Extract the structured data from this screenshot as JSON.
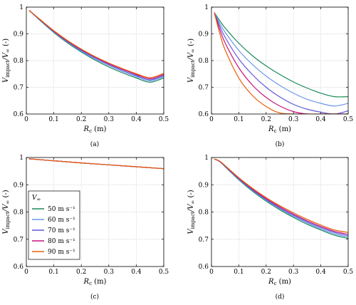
{
  "figure": {
    "colors": {
      "50": "#1a8a5a",
      "60": "#6a98e8",
      "70": "#6058d8",
      "80": "#c8127a",
      "90": "#e8600a",
      "grid": "#cfcfcf",
      "frame": "#000000"
    }
  },
  "legend": {
    "title": "V∞",
    "entries": [
      "50 m s⁻¹",
      "60 m s⁻¹",
      "70 m s⁻¹",
      "80 m s⁻¹",
      "90 m s⁻¹"
    ]
  },
  "chart_data": [
    {
      "type": "line",
      "caption": "(a)",
      "xlabel": "Rc (m)",
      "ylabel": "Vimpact/V∞ (-)",
      "xlim": [
        0,
        0.5
      ],
      "ylim": [
        0.6,
        1.0
      ],
      "xticks": [
        "0",
        "0.1",
        "0.2",
        "0.3",
        "0.4",
        "0.5"
      ],
      "yticks": [
        "0.6",
        "0.7",
        "0.8",
        "0.9",
        "1"
      ],
      "grid": true,
      "x": [
        0.01,
        0.05,
        0.1,
        0.15,
        0.2,
        0.25,
        0.3,
        0.35,
        0.4,
        0.45,
        0.5
      ],
      "series": [
        {
          "name": "50 m s⁻¹",
          "color": "50",
          "values": [
            0.988,
            0.95,
            0.905,
            0.866,
            0.832,
            0.802,
            0.776,
            0.754,
            0.735,
            0.719,
            0.735
          ]
        },
        {
          "name": "60 m s⁻¹",
          "color": "60",
          "values": [
            0.988,
            0.951,
            0.907,
            0.869,
            0.835,
            0.806,
            0.781,
            0.759,
            0.74,
            0.724,
            0.74
          ]
        },
        {
          "name": "70 m s⁻¹",
          "color": "70",
          "values": [
            0.988,
            0.952,
            0.909,
            0.871,
            0.838,
            0.81,
            0.785,
            0.763,
            0.744,
            0.728,
            0.744
          ]
        },
        {
          "name": "80 m s⁻¹",
          "color": "80",
          "values": [
            0.988,
            0.953,
            0.91,
            0.873,
            0.841,
            0.813,
            0.788,
            0.767,
            0.748,
            0.732,
            0.748
          ]
        },
        {
          "name": "90 m s⁻¹",
          "color": "90",
          "values": [
            0.988,
            0.954,
            0.912,
            0.875,
            0.843,
            0.815,
            0.791,
            0.77,
            0.751,
            0.736,
            0.752
          ]
        }
      ]
    },
    {
      "type": "line",
      "caption": "(b)",
      "xlabel": "Rc (m)",
      "ylabel": "Vimpact/V∞ (-)",
      "xlim": [
        0,
        0.5
      ],
      "ylim": [
        0.6,
        1.0
      ],
      "xticks": [
        "0",
        "0.1",
        "0.2",
        "0.3",
        "0.4",
        "0.5"
      ],
      "yticks": [
        "0.6",
        "0.7",
        "0.8",
        "0.9",
        "1"
      ],
      "grid": true,
      "x": [
        0.01,
        0.03,
        0.05,
        0.1,
        0.15,
        0.2,
        0.25,
        0.3,
        0.35,
        0.4,
        0.45,
        0.5
      ],
      "series": [
        {
          "name": "50 m s⁻¹",
          "color": "50",
          "values": [
            0.98,
            0.95,
            0.922,
            0.865,
            0.818,
            0.78,
            0.748,
            0.72,
            0.697,
            0.678,
            0.665,
            0.665
          ]
        },
        {
          "name": "60 m s⁻¹",
          "color": "60",
          "values": [
            0.98,
            0.94,
            0.906,
            0.838,
            0.785,
            0.742,
            0.707,
            0.678,
            0.655,
            0.64,
            0.63,
            0.64
          ]
        },
        {
          "name": "70 m s⁻¹",
          "color": "70",
          "values": [
            0.98,
            0.93,
            0.887,
            0.806,
            0.747,
            0.7,
            0.664,
            0.636,
            0.618,
            0.607,
            0.6,
            0.612
          ]
        },
        {
          "name": "80 m s⁻¹",
          "color": "80",
          "values": [
            0.98,
            0.918,
            0.866,
            0.773,
            0.708,
            0.662,
            0.63,
            0.609,
            0.6,
            0.6,
            0.6,
            0.6
          ]
        },
        {
          "name": "90 m s⁻¹",
          "color": "90",
          "values": [
            0.98,
            0.903,
            0.84,
            0.735,
            0.669,
            0.628,
            0.604,
            0.6,
            0.6,
            0.6,
            0.6,
            0.6
          ]
        }
      ]
    },
    {
      "type": "line",
      "caption": "(c)",
      "xlabel": "Rc (m)",
      "ylabel": "Vimpact/V∞ (-)",
      "xlim": [
        0,
        0.5
      ],
      "ylim": [
        0.6,
        1.0
      ],
      "xticks": [
        "0",
        "0.1",
        "0.2",
        "0.3",
        "0.4",
        "0.5"
      ],
      "yticks": [
        "0.6",
        "0.7",
        "0.8",
        "0.9",
        "1"
      ],
      "grid": true,
      "x": [
        0.01,
        0.1,
        0.2,
        0.3,
        0.4,
        0.5
      ],
      "series": [
        {
          "name": "50 m s⁻¹",
          "color": "50",
          "values": [
            0.995,
            0.988,
            0.98,
            0.973,
            0.966,
            0.959
          ]
        },
        {
          "name": "60 m s⁻¹",
          "color": "60",
          "values": [
            0.995,
            0.988,
            0.98,
            0.973,
            0.966,
            0.959
          ]
        },
        {
          "name": "70 m s⁻¹",
          "color": "70",
          "values": [
            0.995,
            0.988,
            0.98,
            0.973,
            0.966,
            0.959
          ]
        },
        {
          "name": "80 m s⁻¹",
          "color": "80",
          "values": [
            0.995,
            0.988,
            0.98,
            0.973,
            0.966,
            0.959
          ]
        },
        {
          "name": "90 m s⁻¹",
          "color": "90",
          "values": [
            0.995,
            0.988,
            0.98,
            0.973,
            0.966,
            0.959
          ]
        }
      ]
    },
    {
      "type": "line",
      "caption": "(d)",
      "xlabel": "Rc (m)",
      "ylabel": "Vimpact/V∞ (-)",
      "xlim": [
        0,
        0.5
      ],
      "ylim": [
        0.6,
        1.0
      ],
      "xticks": [
        "0",
        "0.1",
        "0.2",
        "0.3",
        "0.4",
        "0.5"
      ],
      "yticks": [
        "0.6",
        "0.7",
        "0.8",
        "0.9",
        "1"
      ],
      "grid": true,
      "x": [
        0.01,
        0.03,
        0.05,
        0.1,
        0.15,
        0.2,
        0.25,
        0.3,
        0.35,
        0.4,
        0.45,
        0.5
      ],
      "series": [
        {
          "name": "50 m s⁻¹",
          "color": "50",
          "values": [
            0.995,
            0.985,
            0.966,
            0.918,
            0.876,
            0.84,
            0.808,
            0.78,
            0.755,
            0.734,
            0.715,
            0.703
          ]
        },
        {
          "name": "60 m s⁻¹",
          "color": "60",
          "values": [
            0.995,
            0.985,
            0.967,
            0.92,
            0.879,
            0.843,
            0.812,
            0.784,
            0.76,
            0.738,
            0.72,
            0.708
          ]
        },
        {
          "name": "70 m s⁻¹",
          "color": "70",
          "values": [
            0.995,
            0.986,
            0.968,
            0.922,
            0.881,
            0.846,
            0.815,
            0.788,
            0.764,
            0.743,
            0.725,
            0.713
          ]
        },
        {
          "name": "80 m s⁻¹",
          "color": "80",
          "values": [
            0.995,
            0.986,
            0.969,
            0.924,
            0.884,
            0.849,
            0.819,
            0.792,
            0.768,
            0.747,
            0.729,
            0.718
          ]
        },
        {
          "name": "90 m s⁻¹",
          "color": "90",
          "values": [
            0.995,
            0.987,
            0.97,
            0.926,
            0.887,
            0.853,
            0.823,
            0.797,
            0.773,
            0.752,
            0.734,
            0.725
          ]
        }
      ]
    }
  ]
}
